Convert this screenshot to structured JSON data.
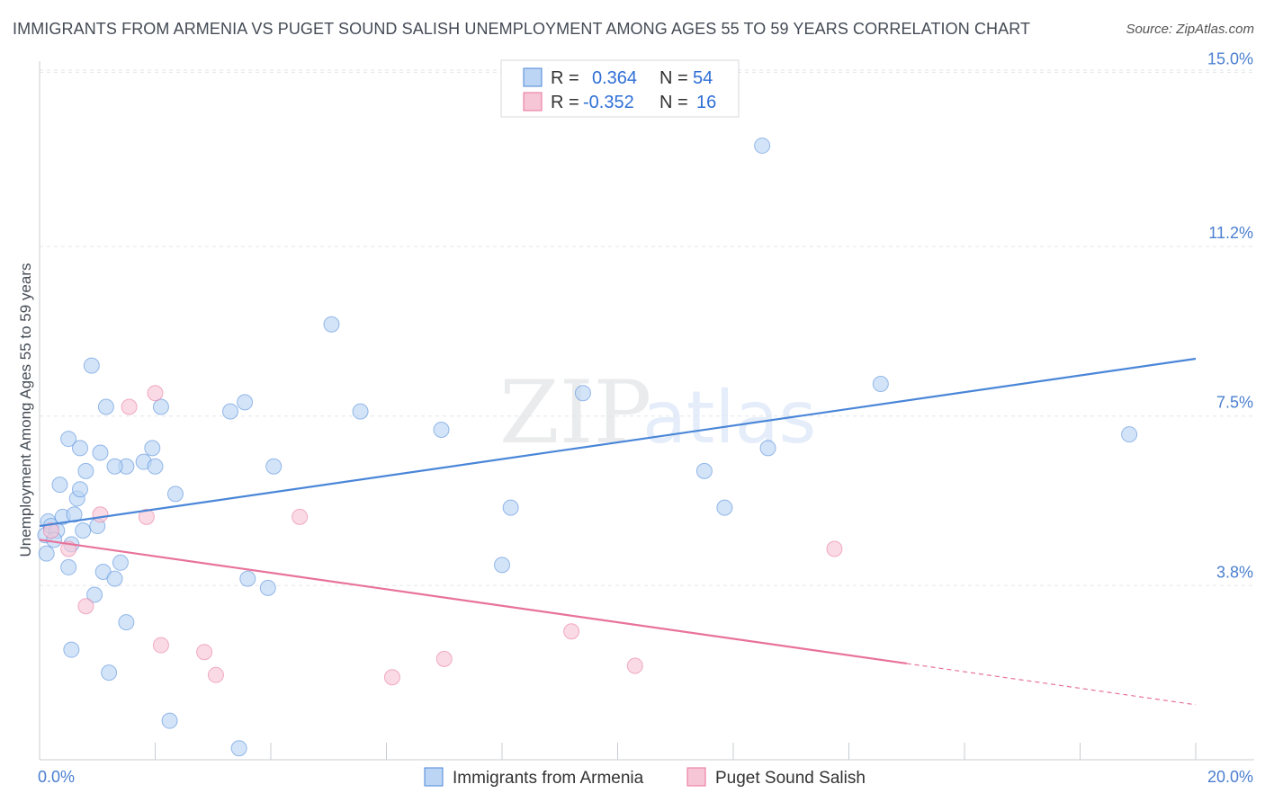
{
  "title": "IMMIGRANTS FROM ARMENIA VS PUGET SOUND SALISH UNEMPLOYMENT AMONG AGES 55 TO 59 YEARS CORRELATION CHART",
  "source": "Source: ZipAtlas.com",
  "watermark": {
    "zip": "ZIP",
    "atlas": "atlas"
  },
  "colors": {
    "blue": "#4a86d8",
    "blue_fill": "#bcd5f5",
    "pink": "#e8729a",
    "pink_fill": "#f7c6d6",
    "tick": "#4a7fd0"
  },
  "legend": {
    "rows": [
      {
        "r_label": "R =",
        "r_value": "0.364",
        "n_label": "N =",
        "n_value": "54"
      },
      {
        "r_label": "R =",
        "r_value": "-0.352",
        "n_label": "N =",
        "n_value": "16"
      }
    ]
  },
  "chart_data": {
    "type": "scatter",
    "xlabel": "",
    "ylabel": "Unemployment Among Ages 55 to 59 years",
    "xlim": [
      0,
      20
    ],
    "ylim": [
      0,
      15.4
    ],
    "x_tick_labels": [
      "0.0%",
      "20.0%"
    ],
    "y_ticks": [
      3.8,
      7.5,
      11.2,
      15.0
    ],
    "y_tick_labels": [
      "3.8%",
      "7.5%",
      "11.2%",
      "15.0%"
    ],
    "grid": true,
    "series": [
      {
        "name": "Immigrants from Armenia",
        "color": "#4a86d8",
        "trend": {
          "x0": 0,
          "y0": 5.1,
          "x1": 20,
          "y1": 8.75,
          "dash_from": null
        },
        "points": [
          [
            0.1,
            4.9
          ],
          [
            0.15,
            5.2
          ],
          [
            0.2,
            5.1
          ],
          [
            0.3,
            5.0
          ],
          [
            0.12,
            4.5
          ],
          [
            0.25,
            4.8
          ],
          [
            0.35,
            6.0
          ],
          [
            0.4,
            5.3
          ],
          [
            0.55,
            4.7
          ],
          [
            0.6,
            5.35
          ],
          [
            0.65,
            5.7
          ],
          [
            0.7,
            5.9
          ],
          [
            0.5,
            7.0
          ],
          [
            0.9,
            8.6
          ],
          [
            1.05,
            6.7
          ],
          [
            0.8,
            6.3
          ],
          [
            0.75,
            5.0
          ],
          [
            1.0,
            5.1
          ],
          [
            1.15,
            7.7
          ],
          [
            1.5,
            6.4
          ],
          [
            1.3,
            6.4
          ],
          [
            1.8,
            6.5
          ],
          [
            2.0,
            6.4
          ],
          [
            2.1,
            7.7
          ],
          [
            1.95,
            6.8
          ],
          [
            0.7,
            6.8
          ],
          [
            3.3,
            7.6
          ],
          [
            3.55,
            7.8
          ],
          [
            4.05,
            6.4
          ],
          [
            2.35,
            5.8
          ],
          [
            1.1,
            4.1
          ],
          [
            1.3,
            3.95
          ],
          [
            0.95,
            3.6
          ],
          [
            1.5,
            3.0
          ],
          [
            0.55,
            2.4
          ],
          [
            1.2,
            1.9
          ],
          [
            2.25,
            0.85
          ],
          [
            3.45,
            0.25
          ],
          [
            3.6,
            3.95
          ],
          [
            3.95,
            3.75
          ],
          [
            5.05,
            9.5
          ],
          [
            5.55,
            7.6
          ],
          [
            6.95,
            7.2
          ],
          [
            8.15,
            5.5
          ],
          [
            8.0,
            4.25
          ],
          [
            9.4,
            8.0
          ],
          [
            11.5,
            6.3
          ],
          [
            11.85,
            5.5
          ],
          [
            12.5,
            13.4
          ],
          [
            12.6,
            6.8
          ],
          [
            14.55,
            8.2
          ],
          [
            18.85,
            7.1
          ],
          [
            0.5,
            4.2
          ],
          [
            1.4,
            4.3
          ]
        ]
      },
      {
        "name": "Puget Sound Salish",
        "color": "#e8729a",
        "trend": {
          "x0": 0,
          "y0": 4.8,
          "x1": 20,
          "y1": 1.2,
          "dash_from": 15
        },
        "points": [
          [
            0.2,
            5.0
          ],
          [
            0.5,
            4.6
          ],
          [
            1.05,
            5.35
          ],
          [
            1.55,
            7.7
          ],
          [
            2.0,
            8.0
          ],
          [
            1.85,
            5.3
          ],
          [
            4.5,
            5.3
          ],
          [
            0.8,
            3.35
          ],
          [
            2.1,
            2.5
          ],
          [
            2.85,
            2.35
          ],
          [
            3.05,
            1.85
          ],
          [
            6.1,
            1.8
          ],
          [
            7.0,
            2.2
          ],
          [
            9.2,
            2.8
          ],
          [
            10.3,
            2.05
          ],
          [
            13.75,
            4.6
          ]
        ]
      }
    ]
  }
}
